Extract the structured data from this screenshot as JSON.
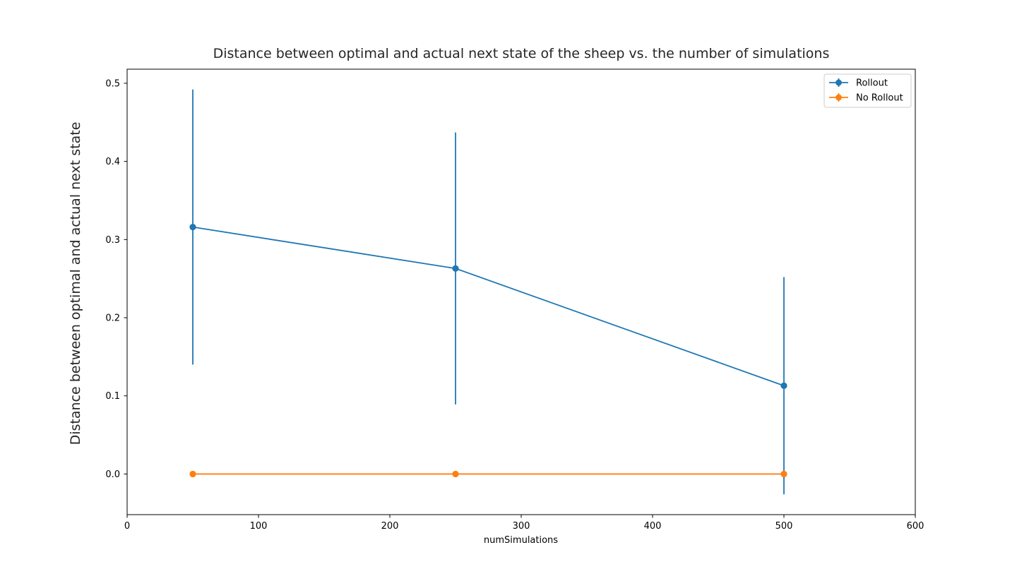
{
  "chart_data": {
    "type": "line",
    "title": "Distance between optimal and actual next state of the sheep vs. the number of simulations",
    "xlabel": "numSimulations",
    "ylabel": "Distance between optimal and actual next state",
    "xlim": [
      0,
      600
    ],
    "ylim": [
      -0.052,
      0.518
    ],
    "xticks": [
      0,
      100,
      200,
      300,
      400,
      500,
      600
    ],
    "xtick_labels": [
      "0",
      "100",
      "200",
      "300",
      "400",
      "500",
      "600"
    ],
    "yticks": [
      0.0,
      0.1,
      0.2,
      0.3,
      0.4,
      0.5
    ],
    "ytick_labels": [
      "0.0",
      "0.1",
      "0.2",
      "0.3",
      "0.4",
      "0.5"
    ],
    "grid": false,
    "legend_position": "top-right",
    "series": [
      {
        "name": "Rollout",
        "color": "#1f77b4",
        "x": [
          50,
          250,
          500
        ],
        "y": [
          0.316,
          0.263,
          0.113
        ],
        "yerr": [
          0.176,
          0.174,
          0.139
        ]
      },
      {
        "name": "No Rollout",
        "color": "#ff7f0e",
        "x": [
          50,
          250,
          500
        ],
        "y": [
          0.0,
          0.0,
          0.0
        ],
        "yerr": [
          0.0,
          0.0,
          0.0
        ]
      }
    ]
  }
}
